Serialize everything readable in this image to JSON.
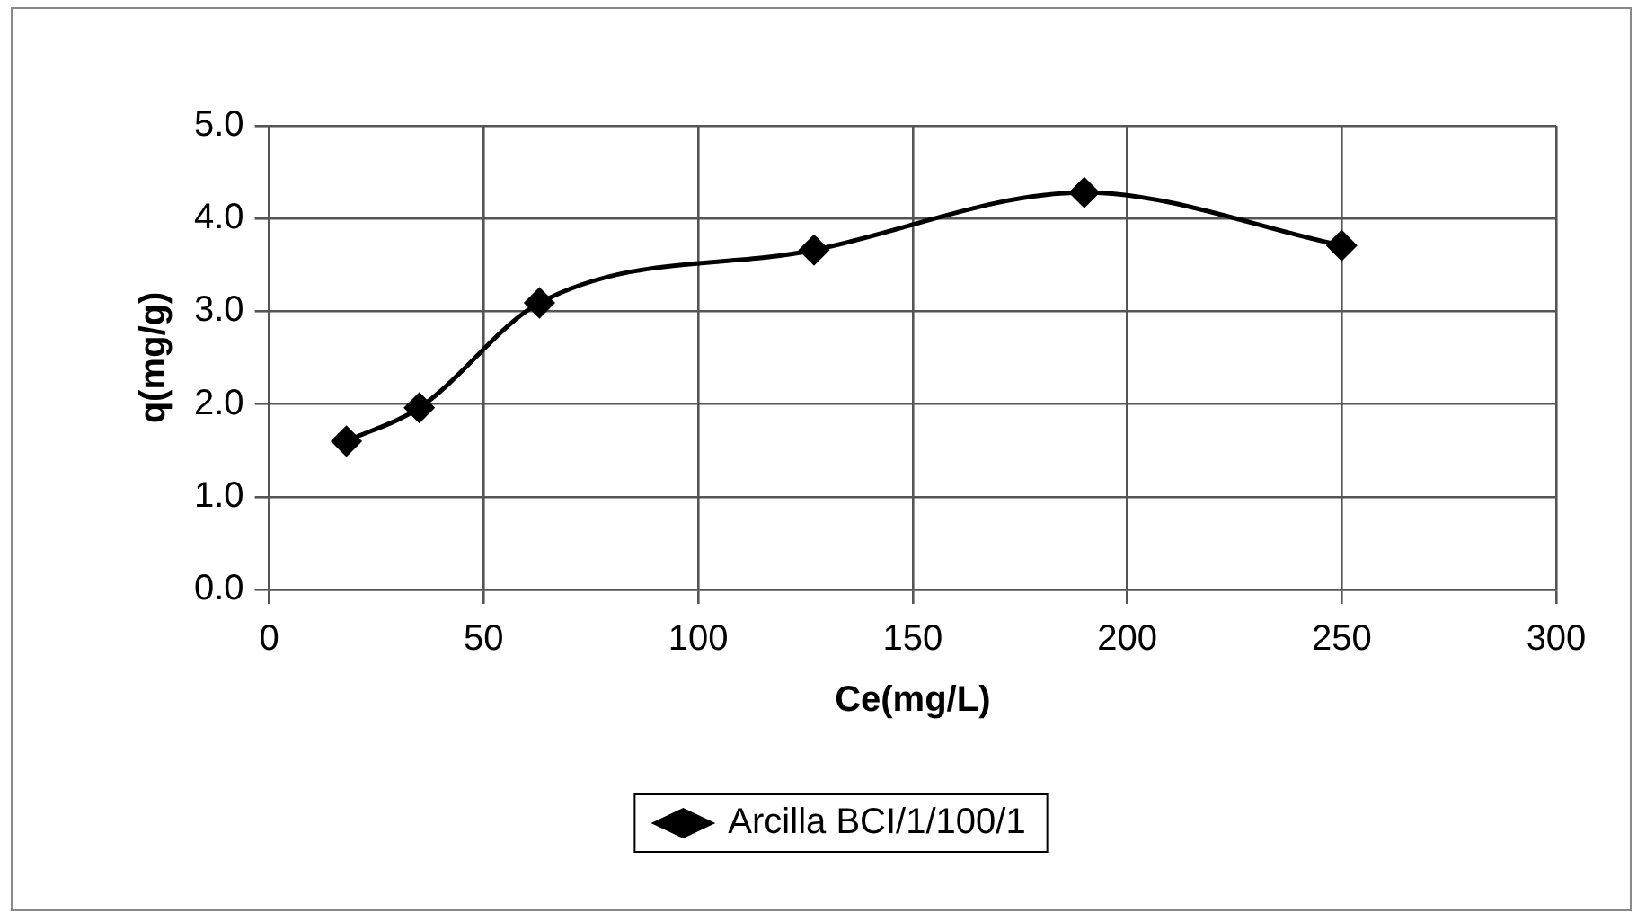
{
  "chart_data": {
    "type": "line",
    "xlabel": "Ce(mg/L)",
    "ylabel": "q(mg/g)",
    "xlim": [
      0,
      300
    ],
    "xticks": [
      0,
      50,
      100,
      150,
      200,
      250,
      300
    ],
    "ylim": [
      0,
      5
    ],
    "yticks": [
      {
        "value": 0,
        "label": "0.0"
      },
      {
        "value": 1,
        "label": "1.0"
      },
      {
        "value": 2,
        "label": "2.0"
      },
      {
        "value": 3,
        "label": "3.0"
      },
      {
        "value": 4,
        "label": "4.0"
      },
      {
        "value": 5,
        "label": "5.0"
      }
    ],
    "x": [
      18,
      35,
      63,
      127,
      190,
      250
    ],
    "series": [
      {
        "name": "Arcilla BCI/1/100/1",
        "color": "#000000",
        "values": [
          1.6,
          1.96,
          3.09,
          3.66,
          4.28,
          3.71
        ]
      }
    ],
    "grid": true,
    "legend": "bottom",
    "marker": "diamond",
    "line_style": "solid"
  }
}
